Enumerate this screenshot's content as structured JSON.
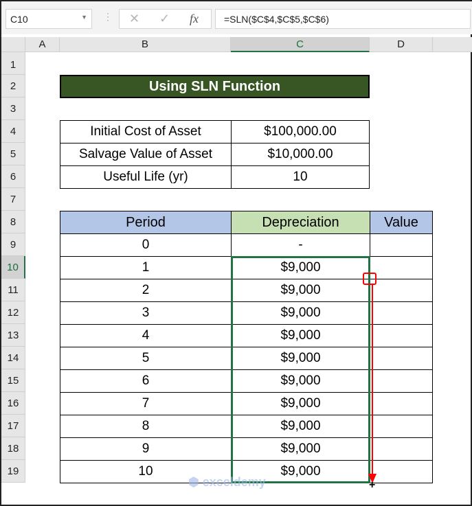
{
  "name_box": "C10",
  "formula": "=SLN($C$4,$C$5,$C$6)",
  "columns": [
    "A",
    "B",
    "C",
    "D"
  ],
  "rows": [
    "1",
    "2",
    "3",
    "4",
    "5",
    "6",
    "7",
    "8",
    "9",
    "10",
    "11",
    "12",
    "13",
    "14",
    "15",
    "16",
    "17",
    "18",
    "19"
  ],
  "title": "Using SLN Function",
  "inputs": [
    {
      "label": "Initial Cost of Asset",
      "value": "$100,000.00"
    },
    {
      "label": "Salvage Value of Asset",
      "value": "$10,000.00"
    },
    {
      "label": "Useful Life (yr)",
      "value": "10"
    }
  ],
  "table": {
    "headers": [
      "Period",
      "Depreciation",
      "Value"
    ],
    "rows": [
      [
        "0",
        "-",
        ""
      ],
      [
        "1",
        "$9,000",
        ""
      ],
      [
        "2",
        "$9,000",
        ""
      ],
      [
        "3",
        "$9,000",
        ""
      ],
      [
        "4",
        "$9,000",
        ""
      ],
      [
        "5",
        "$9,000",
        ""
      ],
      [
        "6",
        "$9,000",
        ""
      ],
      [
        "7",
        "$9,000",
        ""
      ],
      [
        "8",
        "$9,000",
        ""
      ],
      [
        "9",
        "$9,000",
        ""
      ],
      [
        "10",
        "$9,000",
        ""
      ]
    ]
  },
  "colors": {
    "title_bg": "#375623",
    "header_blue": "#B4C6E7",
    "header_green": "#C6E0B4",
    "selection": "#217346",
    "arrow": "#FF0000"
  },
  "watermark": "exceldemy EXCEL - DATA - BI"
}
